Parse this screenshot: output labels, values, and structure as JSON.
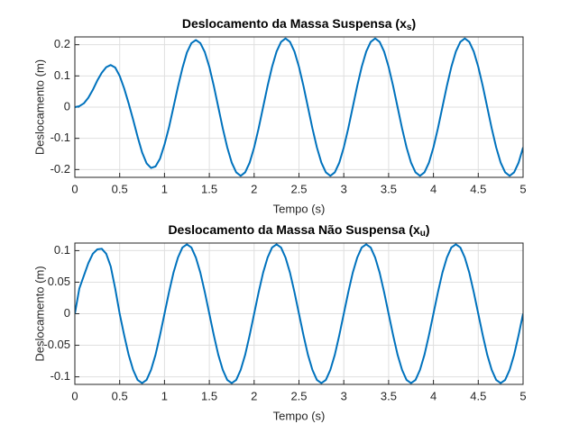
{
  "chart_data": [
    {
      "type": "line",
      "title": [
        "Deslocamento da Massa Suspensa (x",
        "s",
        ")"
      ],
      "xlabel": "Tempo (s)",
      "ylabel": "Deslocamento (m)",
      "x": [
        0,
        0.05,
        0.1,
        0.15,
        0.2,
        0.25,
        0.3,
        0.35,
        0.4,
        0.45,
        0.5,
        0.55,
        0.6,
        0.65,
        0.7,
        0.75,
        0.8,
        0.85,
        0.9,
        0.95,
        1,
        1.05,
        1.1,
        1.15,
        1.2,
        1.25,
        1.3,
        1.35,
        1.4,
        1.45,
        1.5,
        1.55,
        1.6,
        1.65,
        1.7,
        1.75,
        1.8,
        1.85,
        1.9,
        1.95,
        2,
        2.05,
        2.1,
        2.15,
        2.2,
        2.25,
        2.3,
        2.35,
        2.4,
        2.45,
        2.5,
        2.55,
        2.6,
        2.65,
        2.7,
        2.75,
        2.8,
        2.85,
        2.9,
        2.95,
        3,
        3.05,
        3.1,
        3.15,
        3.2,
        3.25,
        3.3,
        3.35,
        3.4,
        3.45,
        3.5,
        3.55,
        3.6,
        3.65,
        3.7,
        3.75,
        3.8,
        3.85,
        3.9,
        3.95,
        4,
        4.05,
        4.1,
        4.15,
        4.2,
        4.25,
        4.3,
        4.35,
        4.4,
        4.45,
        4.5,
        4.55,
        4.6,
        4.65,
        4.7,
        4.75,
        4.8,
        4.85,
        4.9,
        4.95,
        5
      ],
      "values": [
        0,
        0.003,
        0.012,
        0.03,
        0.055,
        0.085,
        0.11,
        0.128,
        0.135,
        0.127,
        0.1,
        0.06,
        0.012,
        -0.04,
        -0.095,
        -0.145,
        -0.18,
        -0.195,
        -0.19,
        -0.165,
        -0.12,
        -0.065,
        0,
        0.065,
        0.125,
        0.175,
        0.205,
        0.215,
        0.205,
        0.176,
        0.129,
        0.068,
        0,
        -0.068,
        -0.129,
        -0.178,
        -0.209,
        -0.22,
        -0.209,
        -0.178,
        -0.129,
        -0.068,
        0,
        0.068,
        0.129,
        0.178,
        0.209,
        0.22,
        0.209,
        0.178,
        0.129,
        0.068,
        0,
        -0.068,
        -0.129,
        -0.178,
        -0.209,
        -0.22,
        -0.209,
        -0.178,
        -0.129,
        -0.068,
        0,
        0.068,
        0.129,
        0.178,
        0.209,
        0.22,
        0.209,
        0.178,
        0.129,
        0.068,
        0,
        -0.068,
        -0.129,
        -0.178,
        -0.209,
        -0.22,
        -0.209,
        -0.178,
        -0.129,
        -0.068,
        0,
        0.068,
        0.129,
        0.178,
        0.209,
        0.22,
        0.209,
        0.178,
        0.129,
        0.068,
        0,
        -0.068,
        -0.129,
        -0.178,
        -0.209,
        -0.22,
        -0.209,
        -0.178,
        -0.129
      ],
      "color": "#0072bd",
      "xlim": [
        0,
        5
      ],
      "xticks": [
        0,
        0.5,
        1,
        1.5,
        2,
        2.5,
        3,
        3.5,
        4,
        4.5,
        5
      ],
      "ylim": [
        -0.225,
        0.225
      ],
      "yticks": [
        -0.2,
        -0.1,
        0,
        0.1,
        0.2
      ],
      "grid": true
    },
    {
      "type": "line",
      "title": [
        "Deslocamento da Massa Não Suspensa (x",
        "u",
        ")"
      ],
      "xlabel": "Tempo (s)",
      "ylabel": "Deslocamento (m)",
      "x": [
        0,
        0.05,
        0.1,
        0.15,
        0.2,
        0.25,
        0.3,
        0.35,
        0.4,
        0.45,
        0.5,
        0.55,
        0.6,
        0.65,
        0.7,
        0.75,
        0.8,
        0.85,
        0.9,
        0.95,
        1,
        1.05,
        1.1,
        1.15,
        1.2,
        1.25,
        1.3,
        1.35,
        1.4,
        1.45,
        1.5,
        1.55,
        1.6,
        1.65,
        1.7,
        1.75,
        1.8,
        1.85,
        1.9,
        1.95,
        2,
        2.05,
        2.1,
        2.15,
        2.2,
        2.25,
        2.3,
        2.35,
        2.4,
        2.45,
        2.5,
        2.55,
        2.6,
        2.65,
        2.7,
        2.75,
        2.8,
        2.85,
        2.9,
        2.95,
        3,
        3.05,
        3.1,
        3.15,
        3.2,
        3.25,
        3.3,
        3.35,
        3.4,
        3.45,
        3.5,
        3.55,
        3.6,
        3.65,
        3.7,
        3.75,
        3.8,
        3.85,
        3.9,
        3.95,
        4,
        4.05,
        4.1,
        4.15,
        4.2,
        4.25,
        4.3,
        4.35,
        4.4,
        4.45,
        4.5,
        4.55,
        4.6,
        4.65,
        4.7,
        4.75,
        4.8,
        4.85,
        4.9,
        4.95,
        5
      ],
      "values": [
        0,
        0.04,
        0.06,
        0.08,
        0.095,
        0.102,
        0.103,
        0.095,
        0.075,
        0.04,
        0,
        -0.034,
        -0.065,
        -0.089,
        -0.105,
        -0.11,
        -0.105,
        -0.089,
        -0.065,
        -0.034,
        0,
        0.034,
        0.065,
        0.089,
        0.105,
        0.11,
        0.105,
        0.089,
        0.065,
        0.034,
        0,
        -0.034,
        -0.065,
        -0.089,
        -0.105,
        -0.11,
        -0.105,
        -0.089,
        -0.065,
        -0.034,
        0,
        0.034,
        0.065,
        0.089,
        0.105,
        0.11,
        0.105,
        0.089,
        0.065,
        0.034,
        0,
        -0.034,
        -0.065,
        -0.089,
        -0.105,
        -0.11,
        -0.105,
        -0.089,
        -0.065,
        -0.034,
        0,
        0.034,
        0.065,
        0.089,
        0.105,
        0.11,
        0.105,
        0.089,
        0.065,
        0.034,
        0,
        -0.034,
        -0.065,
        -0.089,
        -0.105,
        -0.11,
        -0.105,
        -0.089,
        -0.065,
        -0.034,
        0,
        0.034,
        0.065,
        0.089,
        0.105,
        0.11,
        0.105,
        0.089,
        0.065,
        0.034,
        0,
        -0.034,
        -0.065,
        -0.089,
        -0.105,
        -0.11,
        -0.105,
        -0.089,
        -0.065,
        -0.034,
        0
      ],
      "color": "#0072bd",
      "xlim": [
        0,
        5
      ],
      "xticks": [
        0,
        0.5,
        1,
        1.5,
        2,
        2.5,
        3,
        3.5,
        4,
        4.5,
        5
      ],
      "ylim": [
        -0.112,
        0.112
      ],
      "yticks": [
        -0.1,
        -0.05,
        0,
        0.05,
        0.1
      ],
      "grid": true
    }
  ]
}
